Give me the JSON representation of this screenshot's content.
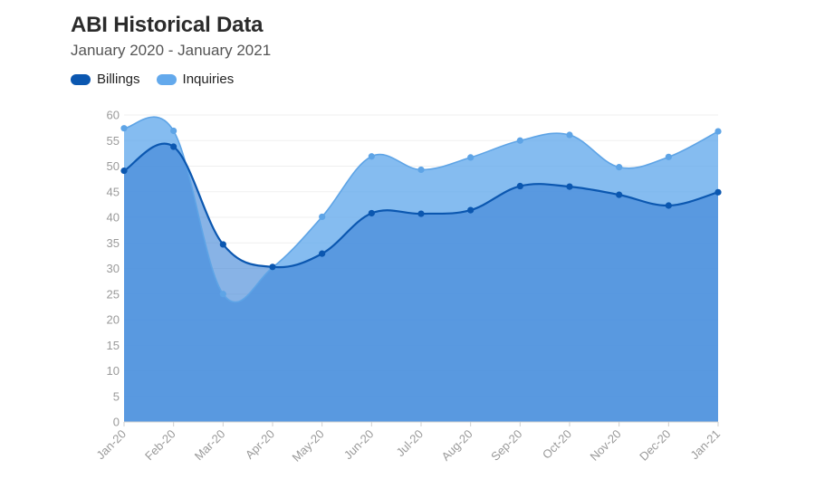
{
  "chart_data": {
    "type": "area",
    "title": "ABI Historical Data",
    "subtitle": "January 2020 - January 2021",
    "categories": [
      "Jan-20",
      "Feb-20",
      "Mar-20",
      "Apr-20",
      "May-20",
      "Jun-20",
      "Jul-20",
      "Aug-20",
      "Sep-20",
      "Oct-20",
      "Nov-20",
      "Dec-20",
      "Jan-21"
    ],
    "series": [
      {
        "name": "Billings",
        "color": "#0b57b0",
        "values": [
          49.1,
          53.8,
          34.7,
          30.3,
          32.9,
          40.8,
          40.7,
          41.4,
          46.1,
          46.0,
          44.4,
          42.3,
          44.9
        ]
      },
      {
        "name": "Inquiries",
        "color": "#63a9ec",
        "values": [
          57.4,
          56.9,
          25.0,
          30.2,
          40.1,
          51.9,
          49.3,
          51.7,
          55.0,
          56.1,
          49.8,
          51.8,
          56.8
        ]
      }
    ],
    "ylim": [
      0,
      60
    ],
    "yticks": [
      0,
      5,
      10,
      15,
      20,
      25,
      30,
      35,
      40,
      45,
      50,
      55,
      60
    ],
    "grid": true,
    "legend": "top-left",
    "xlabel": "",
    "ylabel": ""
  }
}
